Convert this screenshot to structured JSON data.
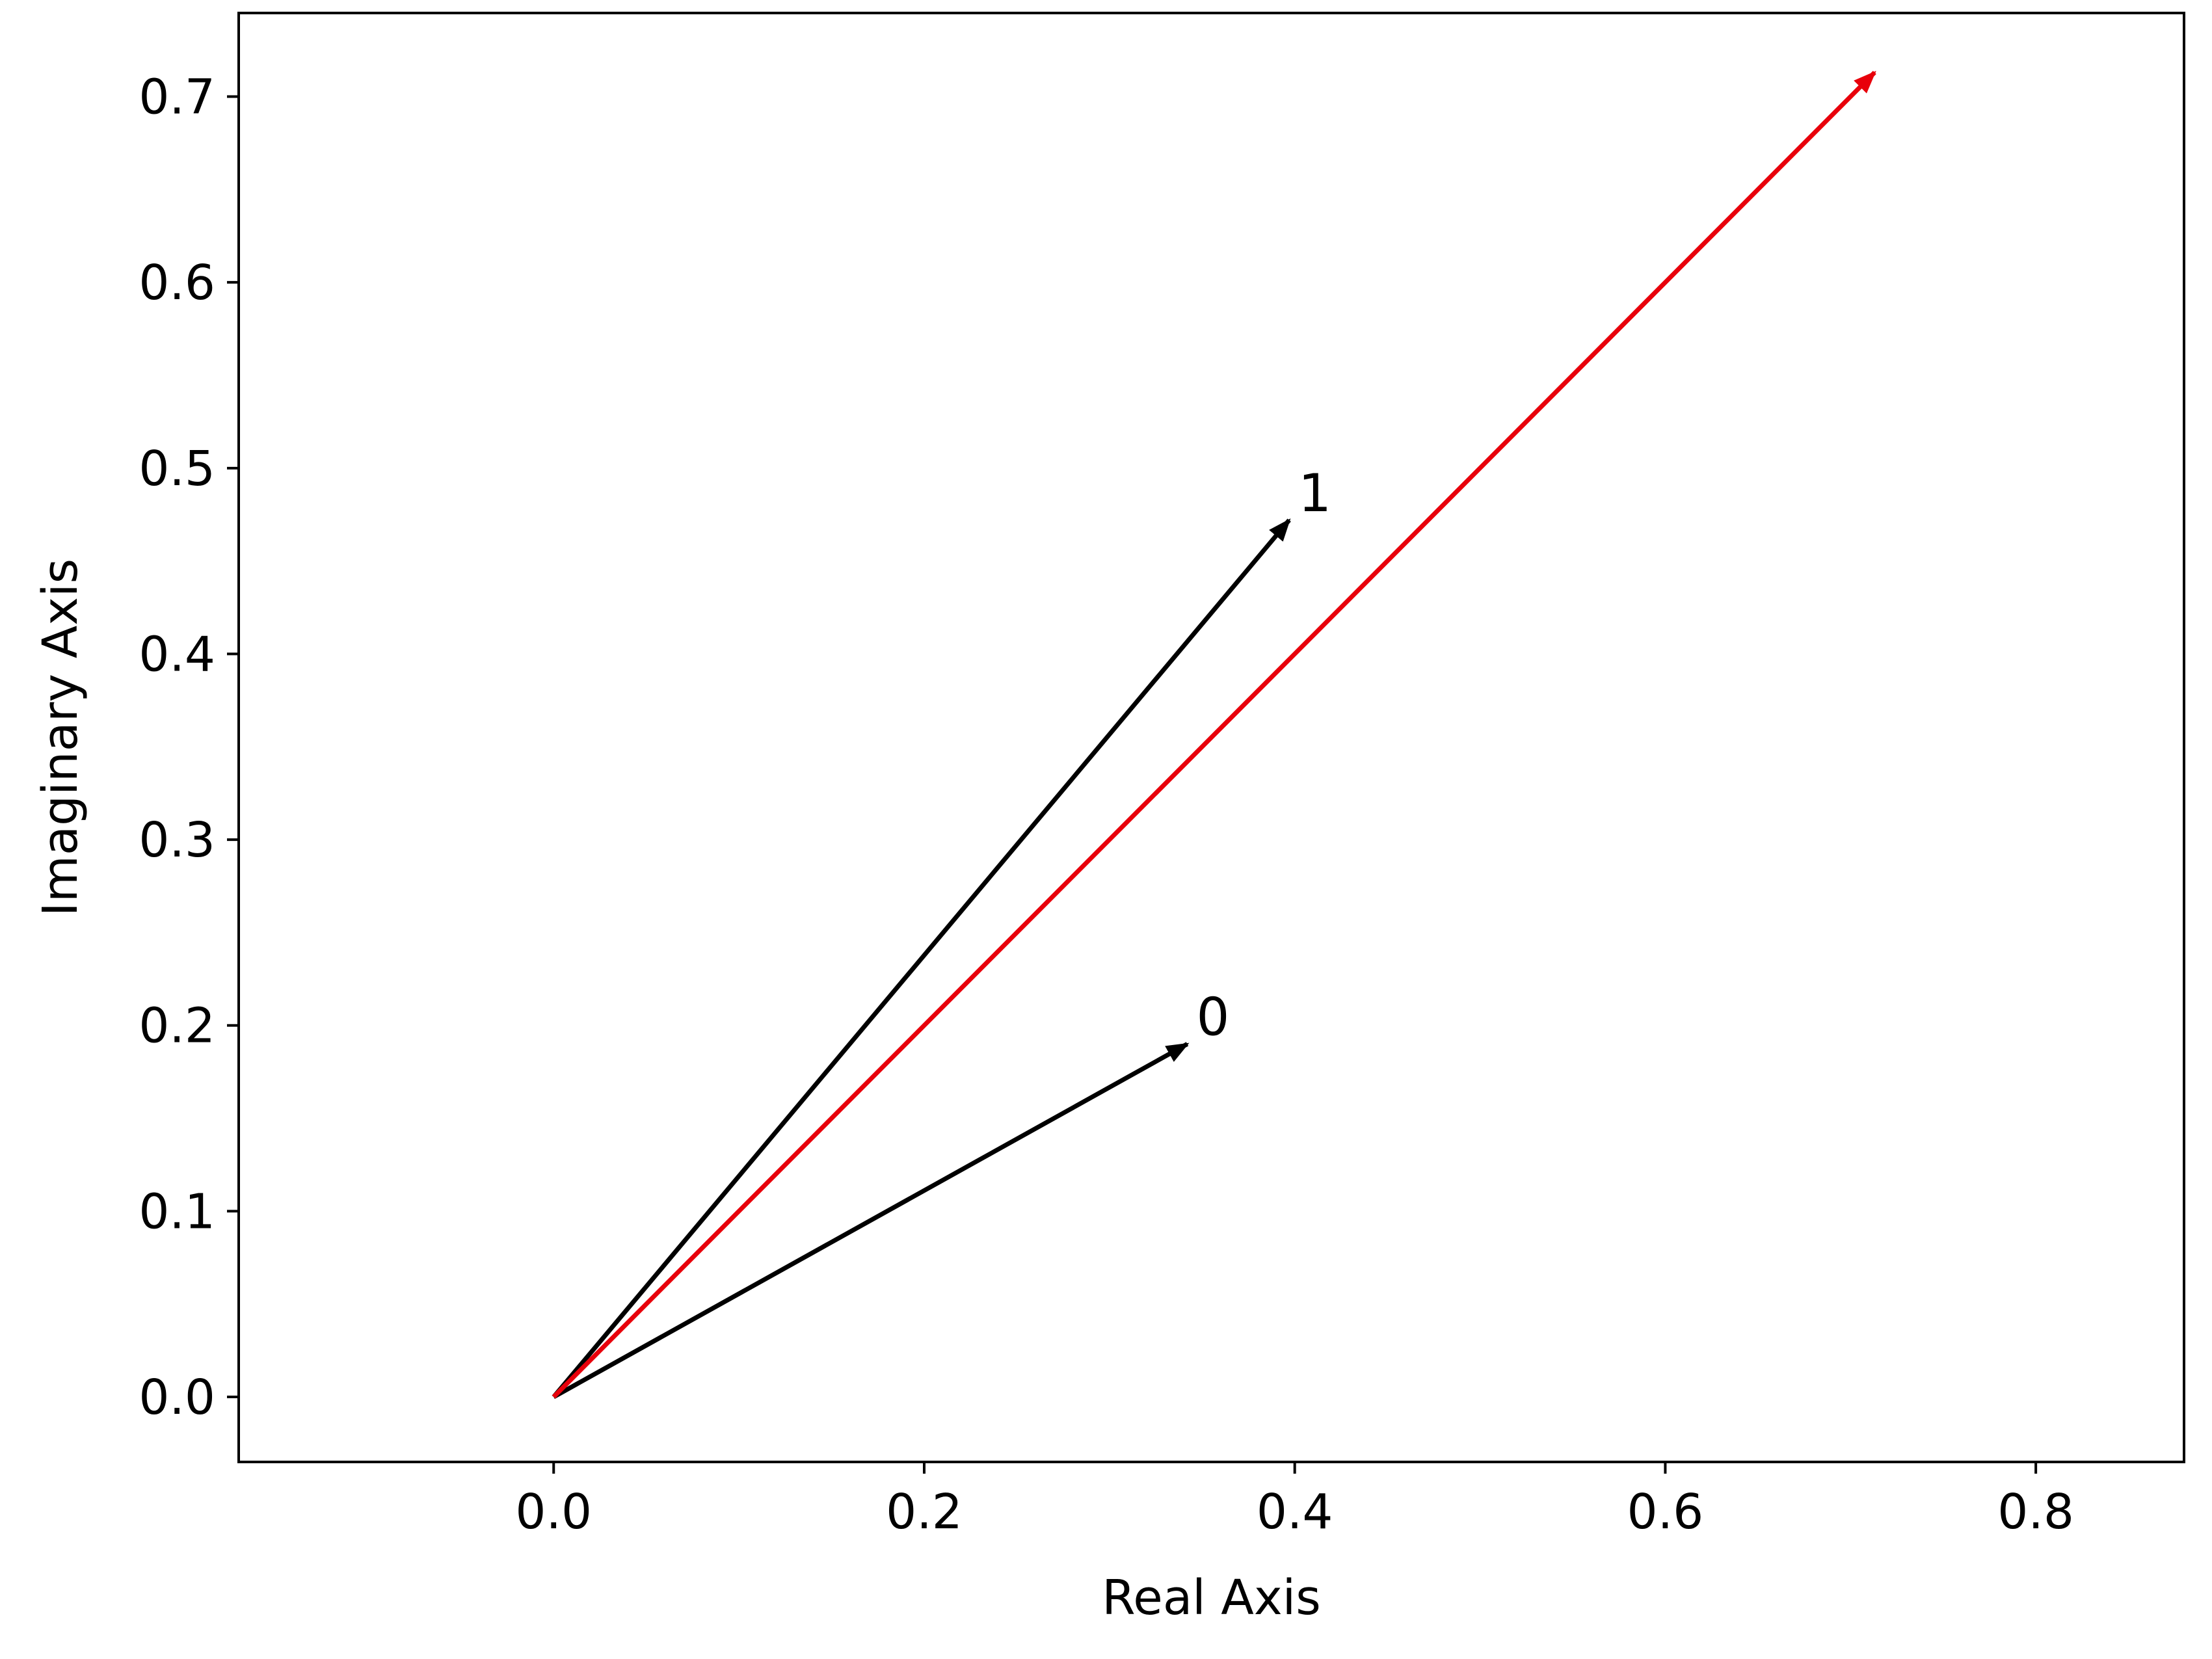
{
  "chart_data": {
    "type": "quiver",
    "xlabel": "Real Axis",
    "ylabel": "Imaginary Axis",
    "xlim": [
      -0.17,
      0.88
    ],
    "ylim": [
      -0.035,
      0.745
    ],
    "x_ticks": [
      0.0,
      0.2,
      0.4,
      0.6,
      0.8
    ],
    "x_tick_labels": [
      "0.0",
      "0.2",
      "0.4",
      "0.6",
      "0.8"
    ],
    "y_ticks": [
      0.0,
      0.1,
      0.2,
      0.3,
      0.4,
      0.5,
      0.6,
      0.7
    ],
    "y_tick_labels": [
      "0.0",
      "0.1",
      "0.2",
      "0.3",
      "0.4",
      "0.5",
      "0.6",
      "0.7"
    ],
    "grid": false,
    "vectors": [
      {
        "label": "0",
        "x0": 0.0,
        "y0": 0.0,
        "x1": 0.342,
        "y1": 0.19,
        "color": "#000000"
      },
      {
        "label": "1",
        "x0": 0.0,
        "y0": 0.0,
        "x1": 0.397,
        "y1": 0.472,
        "color": "#000000"
      },
      {
        "label": "",
        "x0": 0.0,
        "y0": 0.0,
        "x1": 0.713,
        "y1": 0.713,
        "color": "#e8000b"
      }
    ]
  }
}
